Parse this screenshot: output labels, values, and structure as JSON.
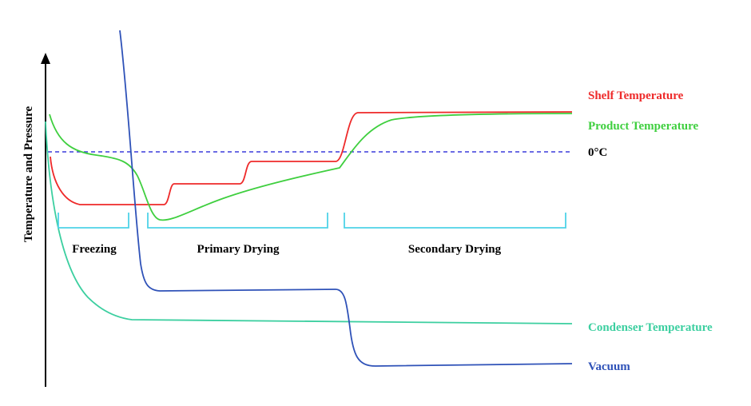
{
  "diagram": {
    "y_axis_label": "Temperature and Pressure",
    "phases": {
      "freezing": "Freezing",
      "primary": "Primary Drying",
      "secondary": "Secondary Drying"
    },
    "legend": {
      "shelf": "Shelf Temperature",
      "product": "Product Temperature",
      "zero": "0°C",
      "condenser": "Condenser Temperature",
      "vacuum": "Vacuum"
    },
    "colors": {
      "shelf": "#ee2a2a",
      "product": "#3fcf3f",
      "zero": "#3b3bdc",
      "condenser": "#3ccfa0",
      "vacuum": "#2f52b8",
      "bracket": "#4fd3e8",
      "axis": "#000000"
    }
  }
}
